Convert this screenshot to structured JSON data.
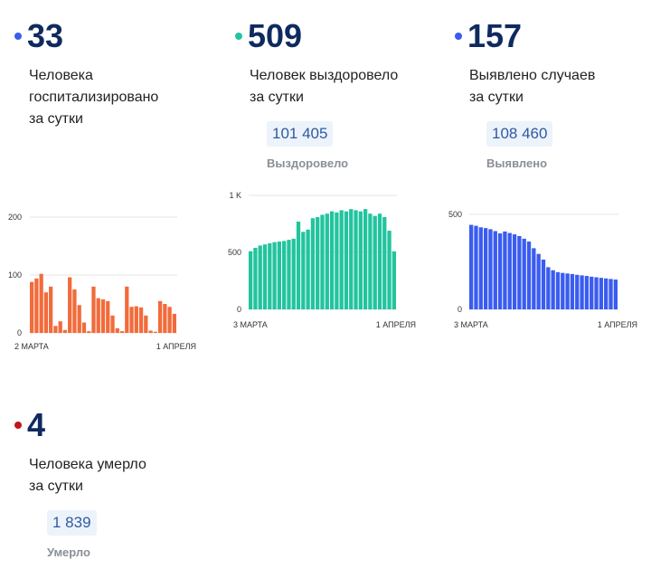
{
  "colors": {
    "hospitalized": "#f26b3a",
    "recovered": "#22c49e",
    "cases": "#3a5cf0",
    "deaths": "#c2161b",
    "number": "#0f2a5f",
    "total_bg": "#edf3fb",
    "total_text": "#2f5aa0"
  },
  "cards": {
    "hospitalized": {
      "value": "33",
      "label_line1": "Человека",
      "label_line2": "госпитализировано",
      "label_line3": "за сутки"
    },
    "recovered": {
      "value": "509",
      "label_line1": "Человек выздоровело",
      "label_line2": "за сутки",
      "total": "101 405",
      "total_label": "Выздоровело"
    },
    "cases": {
      "value": "157",
      "label_line1": "Выявлено случаев",
      "label_line2": "за сутки",
      "total": "108 460",
      "total_label": "Выявлено"
    },
    "deaths": {
      "value": "4",
      "label_line1": "Человека умерло",
      "label_line2": "за сутки",
      "total": "1 839",
      "total_label": "Умерло"
    }
  },
  "chart_data": [
    {
      "id": "hospitalized",
      "type": "bar",
      "x_start_label": "2 МАРТА",
      "x_end_label": "1 АПРЕЛЯ",
      "yticks": [
        0,
        100,
        200
      ],
      "ytick_labels": [
        "0",
        "100",
        "200"
      ],
      "ylim": [
        0,
        200
      ],
      "grid": true,
      "values": [
        88,
        94,
        102,
        70,
        80,
        12,
        20,
        5,
        96,
        75,
        48,
        18,
        3,
        80,
        60,
        58,
        55,
        30,
        8,
        3,
        80,
        45,
        46,
        44,
        30,
        4,
        2,
        55,
        50,
        45,
        33
      ]
    },
    {
      "id": "recovered",
      "type": "bar",
      "x_start_label": "3 МАРТА",
      "x_end_label": "1 АПРЕЛЯ",
      "yticks": [
        0,
        500,
        1000
      ],
      "ytick_labels": [
        "0",
        "500",
        "1 K"
      ],
      "ylim": [
        0,
        1000
      ],
      "grid": true,
      "values": [
        510,
        540,
        560,
        570,
        580,
        590,
        595,
        600,
        610,
        620,
        770,
        680,
        700,
        800,
        810,
        830,
        840,
        860,
        850,
        870,
        860,
        880,
        870,
        860,
        880,
        840,
        820,
        840,
        810,
        690,
        509
      ]
    },
    {
      "id": "cases",
      "type": "bar",
      "x_start_label": "3 МАРТА",
      "x_end_label": "1 АПРЕЛЯ",
      "yticks": [
        0,
        500
      ],
      "ytick_labels": [
        "0",
        "500"
      ],
      "ylim": [
        0,
        600
      ],
      "grid": true,
      "values": [
        445,
        440,
        432,
        428,
        422,
        412,
        400,
        410,
        402,
        395,
        386,
        372,
        357,
        322,
        292,
        262,
        222,
        206,
        196,
        192,
        189,
        186,
        182,
        179,
        176,
        172,
        169,
        166,
        163,
        160,
        157
      ]
    }
  ]
}
